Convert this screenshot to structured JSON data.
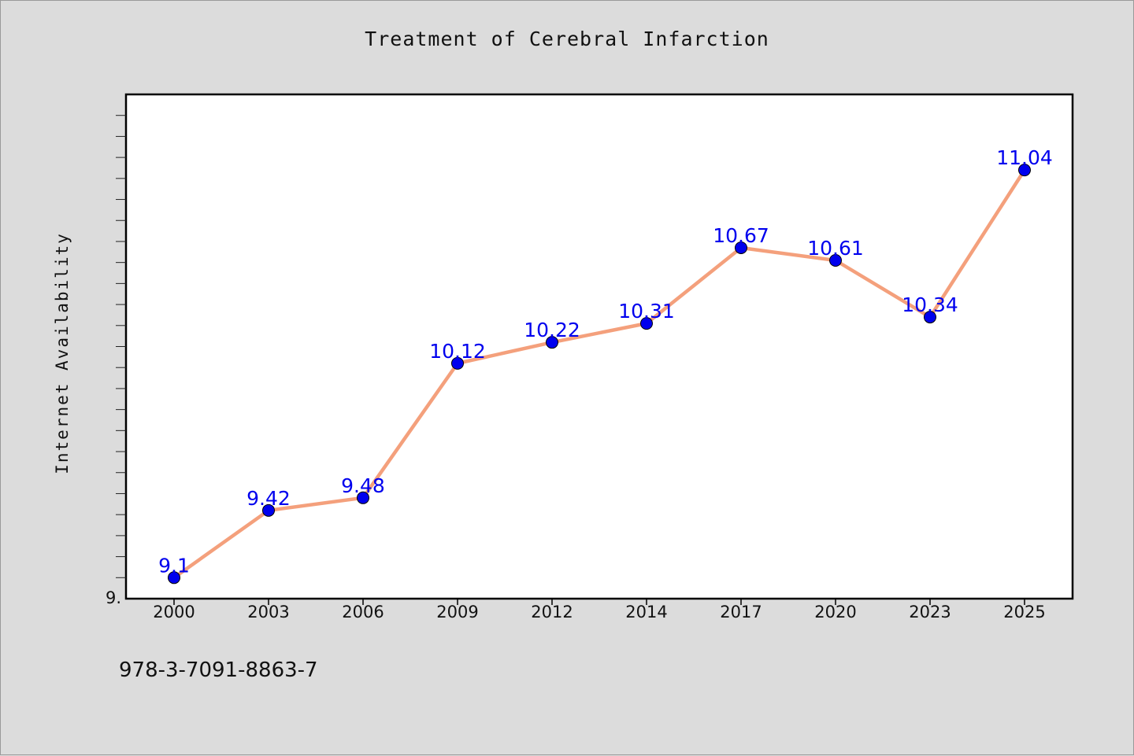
{
  "chart_data": {
    "type": "line",
    "title": "Treatment of Cerebral Infarction",
    "xlabel": "",
    "ylabel": "Internet Availability",
    "categories": [
      "2000",
      "2003",
      "2006",
      "2009",
      "2012",
      "2014",
      "2017",
      "2020",
      "2023",
      "2025"
    ],
    "series": [
      {
        "values": [
          9.1,
          9.42,
          9.48,
          10.12,
          10.22,
          10.31,
          10.67,
          10.61,
          10.34,
          11.04
        ]
      }
    ],
    "data_labels": [
      "9.1",
      "9.42",
      "9.48",
      "10.12",
      "10.22",
      "10.31",
      "10.67",
      "10.61",
      "10.34",
      "11.04"
    ],
    "y_tick_labels": [
      "9."
    ],
    "ylim": [
      9.0,
      11.4
    ],
    "grid": false,
    "legend": "none",
    "colors": {
      "line": "#f4a07c",
      "marker": "#0000ee",
      "data_label": "#0000ee"
    }
  },
  "footer": {
    "code": "978-3-7091-8863-7"
  }
}
